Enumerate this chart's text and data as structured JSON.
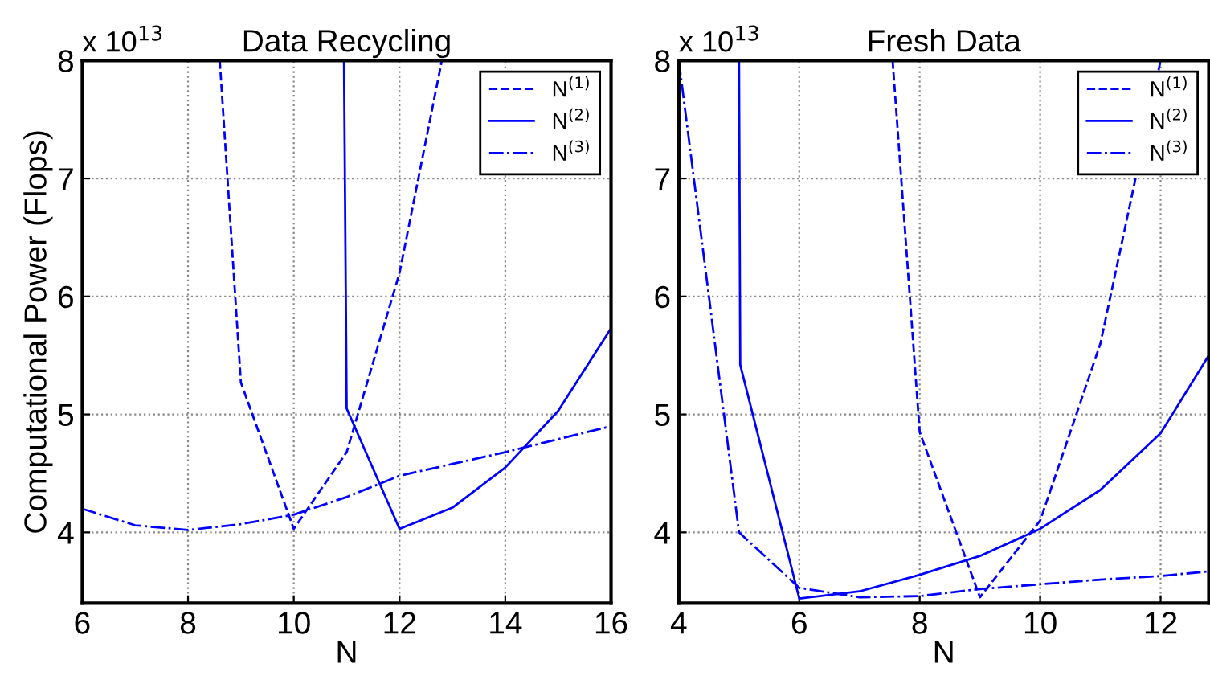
{
  "chart_data": [
    {
      "type": "line",
      "title": "Data Recycling",
      "xlabel": "N",
      "ylabel": "Computational Power (Flops)",
      "annotations": [
        "x 10$^{13}$"
      ],
      "xlim": [
        6,
        16
      ],
      "xticks": [
        6,
        8,
        10,
        12,
        14,
        16
      ],
      "ylim": [
        3.4,
        8
      ],
      "yticks": [
        4,
        5,
        6,
        7,
        8
      ],
      "grid": true,
      "legend": "top right",
      "series": [
        {
          "name": "N$^{(1)}$",
          "color": "#0000ff",
          "line_style": "dashed",
          "x": [
            8.6,
            9,
            10,
            11,
            12,
            12.8
          ],
          "values": [
            8,
            5.27,
            4.03,
            4.68,
            6.2,
            8
          ]
        },
        {
          "name": "N$^{(2)}$",
          "color": "#0000ff",
          "line_style": "solid",
          "x": [
            10.95,
            11,
            12,
            13,
            14,
            15,
            16
          ],
          "values": [
            8,
            5.05,
            4.03,
            4.21,
            4.55,
            5.03,
            5.73
          ]
        },
        {
          "name": "N$^{(3)}$",
          "color": "#0000ff",
          "line_style": "dashdot",
          "x": [
            6,
            7,
            8,
            9,
            10,
            11,
            12,
            13,
            14,
            15,
            16
          ],
          "values": [
            4.2,
            4.06,
            4.02,
            4.07,
            4.15,
            4.3,
            4.48,
            4.58,
            4.68,
            4.79,
            4.9
          ]
        }
      ]
    },
    {
      "type": "line",
      "title": "Fresh Data",
      "xlabel": "N",
      "annotations": [
        "x 10$^{13}$"
      ],
      "xlim": [
        4,
        12.8
      ],
      "xticks": [
        4,
        6,
        8,
        10,
        12
      ],
      "ylim": [
        3.4,
        8
      ],
      "yticks": [
        4,
        5,
        6,
        7,
        8
      ],
      "grid": true,
      "legend": "top right",
      "series": [
        {
          "name": "N$^{(1)}$",
          "color": "#0000ff",
          "line_style": "dashed",
          "x": [
            7.55,
            8,
            9,
            10,
            11,
            12
          ],
          "values": [
            8,
            4.85,
            3.45,
            4.1,
            5.6,
            8
          ]
        },
        {
          "name": "N$^{(2)}$",
          "color": "#0000ff",
          "line_style": "solid",
          "x": [
            5,
            5.02,
            6,
            7,
            8,
            9,
            10,
            11,
            12,
            12.8
          ],
          "values": [
            8,
            5.42,
            3.44,
            3.5,
            3.64,
            3.8,
            4.03,
            4.36,
            4.84,
            5.5
          ]
        },
        {
          "name": "N$^{(3)}$",
          "color": "#0000ff",
          "line_style": "dashdot",
          "x": [
            4,
            5,
            6,
            7,
            8,
            9,
            10,
            11,
            12,
            12.8
          ],
          "values": [
            8,
            4.0,
            3.53,
            3.45,
            3.46,
            3.52,
            3.56,
            3.6,
            3.63,
            3.67
          ]
        }
      ]
    }
  ]
}
